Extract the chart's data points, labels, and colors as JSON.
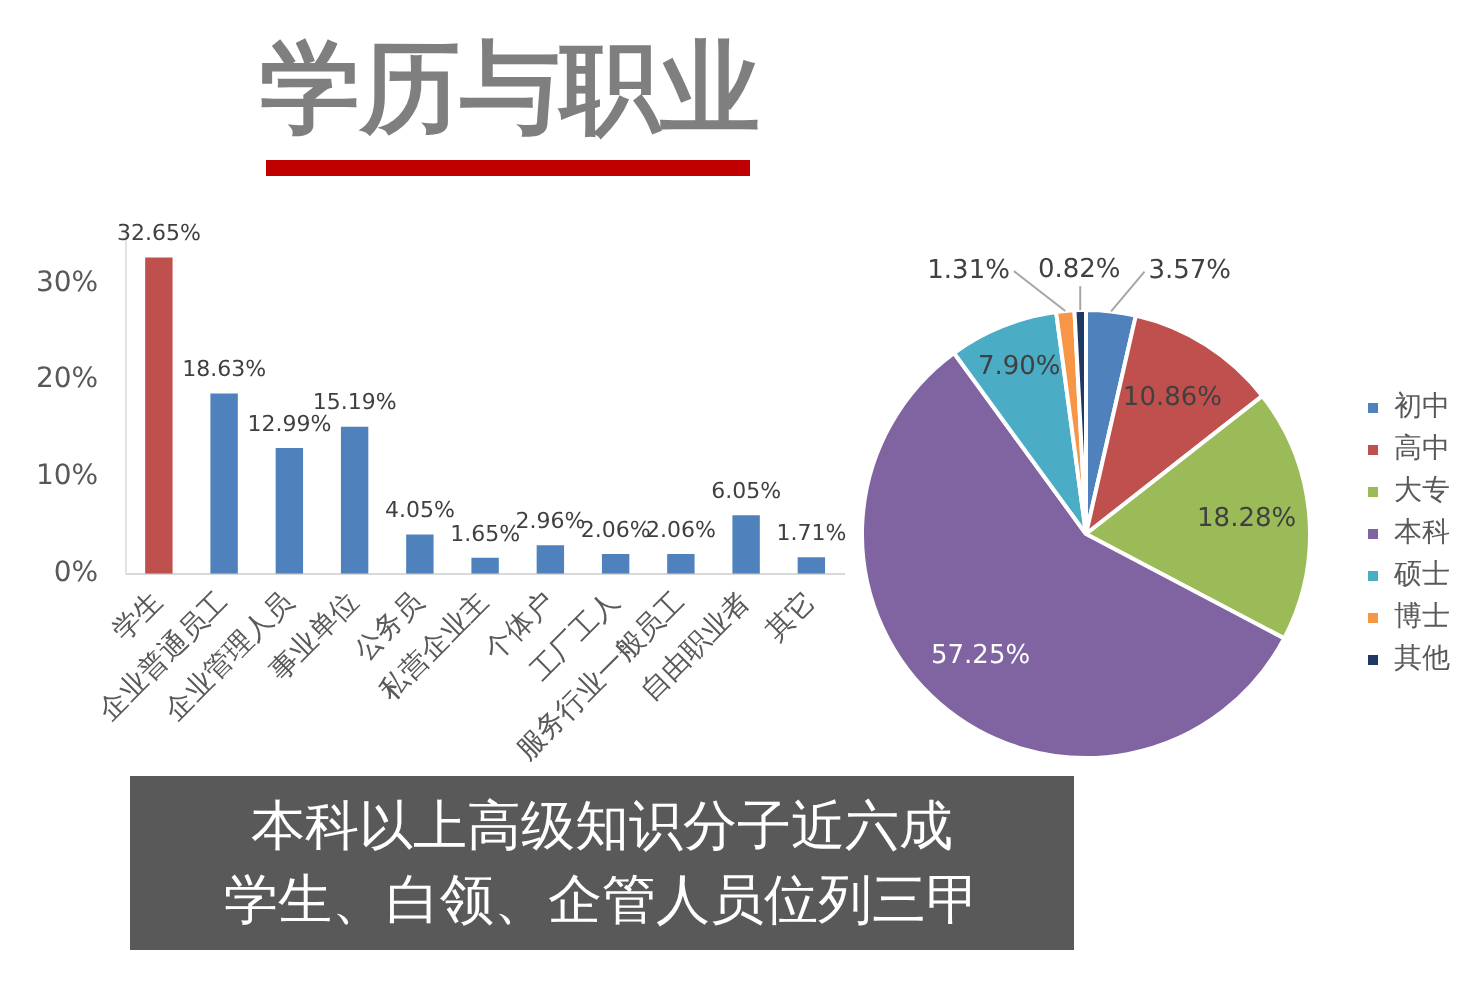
{
  "chart_data": [
    {
      "type": "bar",
      "title": "学历与职业",
      "categories": [
        "学生",
        "企业普通员工",
        "企业管理人员",
        "事业单位",
        "公务员",
        "私营企业主",
        "个体户",
        "工厂工人",
        "服务行业一般员工",
        "自由职业者",
        "其它"
      ],
      "values": [
        32.65,
        18.63,
        12.99,
        15.19,
        4.05,
        1.65,
        2.96,
        2.06,
        2.06,
        6.05,
        1.71
      ],
      "colors": [
        "#c0504d",
        "#4f81bd",
        "#4f81bd",
        "#4f81bd",
        "#4f81bd",
        "#4f81bd",
        "#4f81bd",
        "#4f81bd",
        "#4f81bd",
        "#4f81bd",
        "#4f81bd"
      ],
      "value_labels": [
        "32.65%",
        "18.63%",
        "12.99%",
        "15.19%",
        "4.05%",
        "1.65%",
        "2.96%",
        "2.06%",
        "2.06%",
        "6.05%",
        "1.71%"
      ],
      "ylim": [
        0,
        35
      ],
      "yticks": [
        {
          "value": 0,
          "label": "0%"
        },
        {
          "value": 10,
          "label": "10%"
        },
        {
          "value": 20,
          "label": "20%"
        },
        {
          "value": 30,
          "label": "30%"
        }
      ]
    },
    {
      "type": "pie",
      "categories": [
        "初中",
        "高中",
        "大专",
        "本科",
        "硕士",
        "博士",
        "其他"
      ],
      "values": [
        3.57,
        10.86,
        18.28,
        57.25,
        7.9,
        1.31,
        0.82
      ],
      "colors": [
        "#4f81bd",
        "#c0504d",
        "#9bbb59",
        "#8064a2",
        "#4bacc6",
        "#f79646",
        "#1f3864"
      ],
      "value_labels": [
        "3.57%",
        "10.86%",
        "18.28%",
        "57.25%",
        "7.90%",
        "1.31%",
        "0.82%"
      ],
      "legend": "right"
    },
    {
      "type": "other",
      "annotations": [
        "本科以上高级知识分子近六成",
        "学生、白领、企管人员位列三甲"
      ]
    }
  ]
}
